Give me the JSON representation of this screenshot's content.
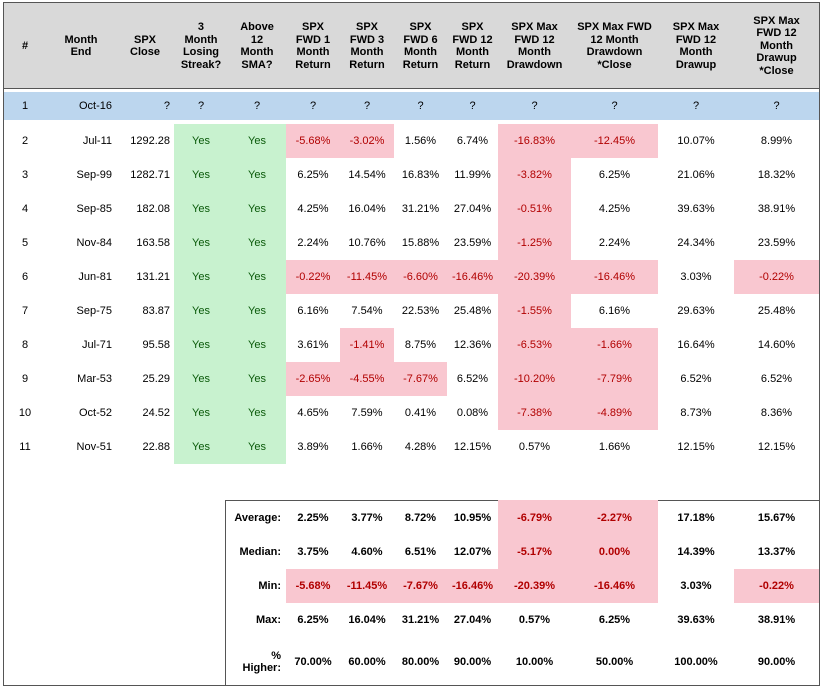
{
  "chart_data": {
    "type": "table",
    "columns": [
      "#",
      "Month\nEnd",
      "SPX\nClose",
      "3\nMonth\nLosing\nStreak?",
      "Above\n12\nMonth\nSMA?",
      "SPX\nFWD 1\nMonth\nReturn",
      "SPX\nFWD 3\nMonth\nReturn",
      "SPX\nFWD 6\nMonth\nReturn",
      "SPX\nFWD 12\nMonth\nReturn",
      "SPX Max\nFWD 12\nMonth\nDrawdown",
      "SPX Max FWD\n12 Month\nDrawdown\n*Close",
      "SPX Max\nFWD 12\nMonth\nDrawup",
      "SPX Max\nFWD 12\nMonth\nDrawup\n*Close"
    ],
    "rows": [
      [
        "1",
        "Oct-16",
        "?",
        "?",
        "?",
        "?",
        "?",
        "?",
        "?",
        "?",
        "?",
        "?",
        "?"
      ],
      [
        "2",
        "Jul-11",
        "1292.28",
        "Yes",
        "Yes",
        "-5.68%",
        "-3.02%",
        "1.56%",
        "6.74%",
        "-16.83%",
        "-12.45%",
        "10.07%",
        "8.99%"
      ],
      [
        "3",
        "Sep-99",
        "1282.71",
        "Yes",
        "Yes",
        "6.25%",
        "14.54%",
        "16.83%",
        "11.99%",
        "-3.82%",
        "6.25%",
        "21.06%",
        "18.32%"
      ],
      [
        "4",
        "Sep-85",
        "182.08",
        "Yes",
        "Yes",
        "4.25%",
        "16.04%",
        "31.21%",
        "27.04%",
        "-0.51%",
        "4.25%",
        "39.63%",
        "38.91%"
      ],
      [
        "5",
        "Nov-84",
        "163.58",
        "Yes",
        "Yes",
        "2.24%",
        "10.76%",
        "15.88%",
        "23.59%",
        "-1.25%",
        "2.24%",
        "24.34%",
        "23.59%"
      ],
      [
        "6",
        "Jun-81",
        "131.21",
        "Yes",
        "Yes",
        "-0.22%",
        "-11.45%",
        "-6.60%",
        "-16.46%",
        "-20.39%",
        "-16.46%",
        "3.03%",
        "-0.22%"
      ],
      [
        "7",
        "Sep-75",
        "83.87",
        "Yes",
        "Yes",
        "6.16%",
        "7.54%",
        "22.53%",
        "25.48%",
        "-1.55%",
        "6.16%",
        "29.63%",
        "25.48%"
      ],
      [
        "8",
        "Jul-71",
        "95.58",
        "Yes",
        "Yes",
        "3.61%",
        "-1.41%",
        "8.75%",
        "12.36%",
        "-6.53%",
        "-1.66%",
        "16.64%",
        "14.60%"
      ],
      [
        "9",
        "Mar-53",
        "25.29",
        "Yes",
        "Yes",
        "-2.65%",
        "-4.55%",
        "-7.67%",
        "6.52%",
        "-10.20%",
        "-7.79%",
        "6.52%",
        "6.52%"
      ],
      [
        "10",
        "Oct-52",
        "24.52",
        "Yes",
        "Yes",
        "4.65%",
        "7.59%",
        "0.41%",
        "0.08%",
        "-7.38%",
        "-4.89%",
        "8.73%",
        "8.36%"
      ],
      [
        "11",
        "Nov-51",
        "22.88",
        "Yes",
        "Yes",
        "3.89%",
        "1.66%",
        "4.28%",
        "12.15%",
        "0.57%",
        "1.66%",
        "12.15%",
        "12.15%"
      ]
    ],
    "summary": [
      {
        "label": "Average:",
        "values": [
          "2.25%",
          "3.77%",
          "8.72%",
          "10.95%",
          "-6.79%",
          "-2.27%",
          "17.18%",
          "15.67%"
        ]
      },
      {
        "label": "Median:",
        "values": [
          "3.75%",
          "4.60%",
          "6.51%",
          "12.07%",
          "-5.17%",
          "0.00%",
          "14.39%",
          "13.37%"
        ]
      },
      {
        "label": "Min:",
        "values": [
          "-5.68%",
          "-11.45%",
          "-7.67%",
          "-16.46%",
          "-20.39%",
          "-16.46%",
          "3.03%",
          "-0.22%"
        ]
      },
      {
        "label": "Max:",
        "values": [
          "6.25%",
          "16.04%",
          "31.21%",
          "27.04%",
          "0.57%",
          "6.25%",
          "39.63%",
          "38.91%"
        ]
      },
      {
        "label": "%\nHigher:",
        "values": [
          "70.00%",
          "60.00%",
          "80.00%",
          "90.00%",
          "10.00%",
          "50.00%",
          "100.00%",
          "90.00%"
        ]
      }
    ]
  },
  "colors": {
    "header_bg": "#d9d9d9",
    "current_row_bg": "#bcd6ee",
    "negative_bg": "#f9c7d0",
    "negative_text": "#b10000",
    "yes_bg": "#c8f2cf",
    "yes_text": "#0a5a0a"
  }
}
